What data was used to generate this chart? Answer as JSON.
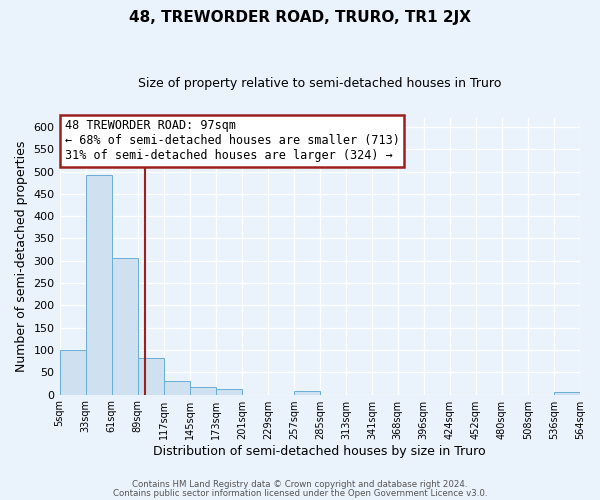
{
  "title": "48, TREWORDER ROAD, TRURO, TR1 2JX",
  "subtitle": "Size of property relative to semi-detached houses in Truro",
  "xlabel": "Distribution of semi-detached houses by size in Truro",
  "ylabel": "Number of semi-detached properties",
  "bin_edges": [
    5,
    33,
    61,
    89,
    117,
    145,
    173,
    201,
    229,
    257,
    285,
    313,
    341,
    368,
    396,
    424,
    452,
    480,
    508,
    536,
    564
  ],
  "bin_counts": [
    100,
    493,
    307,
    81,
    31,
    16,
    12,
    0,
    0,
    7,
    0,
    0,
    0,
    0,
    0,
    0,
    0,
    0,
    0,
    5
  ],
  "property_size": 97,
  "annotation_title": "48 TREWORDER ROAD: 97sqm",
  "annotation_line1": "← 68% of semi-detached houses are smaller (713)",
  "annotation_line2": "31% of semi-detached houses are larger (324) →",
  "bar_color": "#cfe0f0",
  "bar_edge_color": "#6aaed6",
  "vline_color": "#9b2020",
  "annotation_box_edge": "#9b2020",
  "background_color": "#eaf2fb",
  "grid_color": "#d8e8f5",
  "ylim": [
    0,
    620
  ],
  "yticks": [
    0,
    50,
    100,
    150,
    200,
    250,
    300,
    350,
    400,
    450,
    500,
    550,
    600
  ],
  "footer_line1": "Contains HM Land Registry data © Crown copyright and database right 2024.",
  "footer_line2": "Contains public sector information licensed under the Open Government Licence v3.0."
}
